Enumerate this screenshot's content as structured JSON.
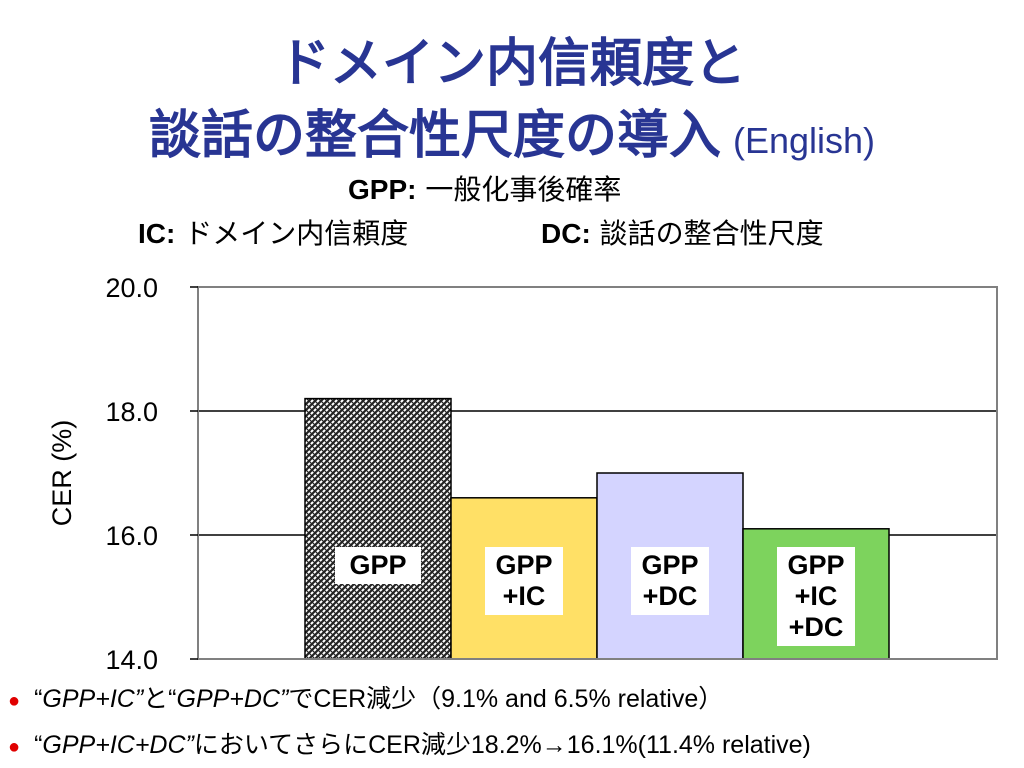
{
  "slide": {
    "title_line1": "ドメイン内信頼度と",
    "title_line2": "談話の整合性尺度の導入",
    "title_english": "(English)",
    "title_color": "#283593"
  },
  "legend_defs": {
    "gpp_key": "GPP:",
    "gpp_text": "一般化事後確率",
    "ic_key": "IC:",
    "ic_text": "ドメイン内信頼度",
    "dc_key": "DC:",
    "dc_text": "談話の整合性尺度"
  },
  "chart_data": {
    "type": "bar",
    "ylabel": "CER (%)",
    "xlabel": "",
    "ylim": [
      14.0,
      20.0
    ],
    "yticks": [
      "14.0",
      "16.0",
      "18.0",
      "20.0"
    ],
    "ytick_values": [
      14,
      16,
      18,
      20
    ],
    "grid": true,
    "categories": [
      {
        "label_lines": [
          "GPP"
        ],
        "value": 18.2,
        "fill": "hatch",
        "color": "#222222"
      },
      {
        "label_lines": [
          "GPP",
          "+IC"
        ],
        "value": 16.6,
        "fill": "solid",
        "color": "#ffe066"
      },
      {
        "label_lines": [
          "GPP",
          "+DC"
        ],
        "value": 17.0,
        "fill": "solid",
        "color": "#d4d4ff"
      },
      {
        "label_lines": [
          "GPP",
          "+IC",
          "+DC"
        ],
        "value": 16.1,
        "fill": "solid",
        "color": "#7dd35d"
      }
    ]
  },
  "bullets": [
    {
      "q1": "“",
      "i1": "GPP+IC”",
      "t1": "と",
      "q2": "“",
      "i2": "GPP+DC”",
      "t2": "でCER減少（9.1% and 6.5% relative）"
    },
    {
      "q1": "“",
      "i1": "GPP+IC+DC”",
      "t1": "においてさらにCER減少18.2%→16.1%(11.4% relative)"
    }
  ],
  "bullet_color": "#e00000"
}
